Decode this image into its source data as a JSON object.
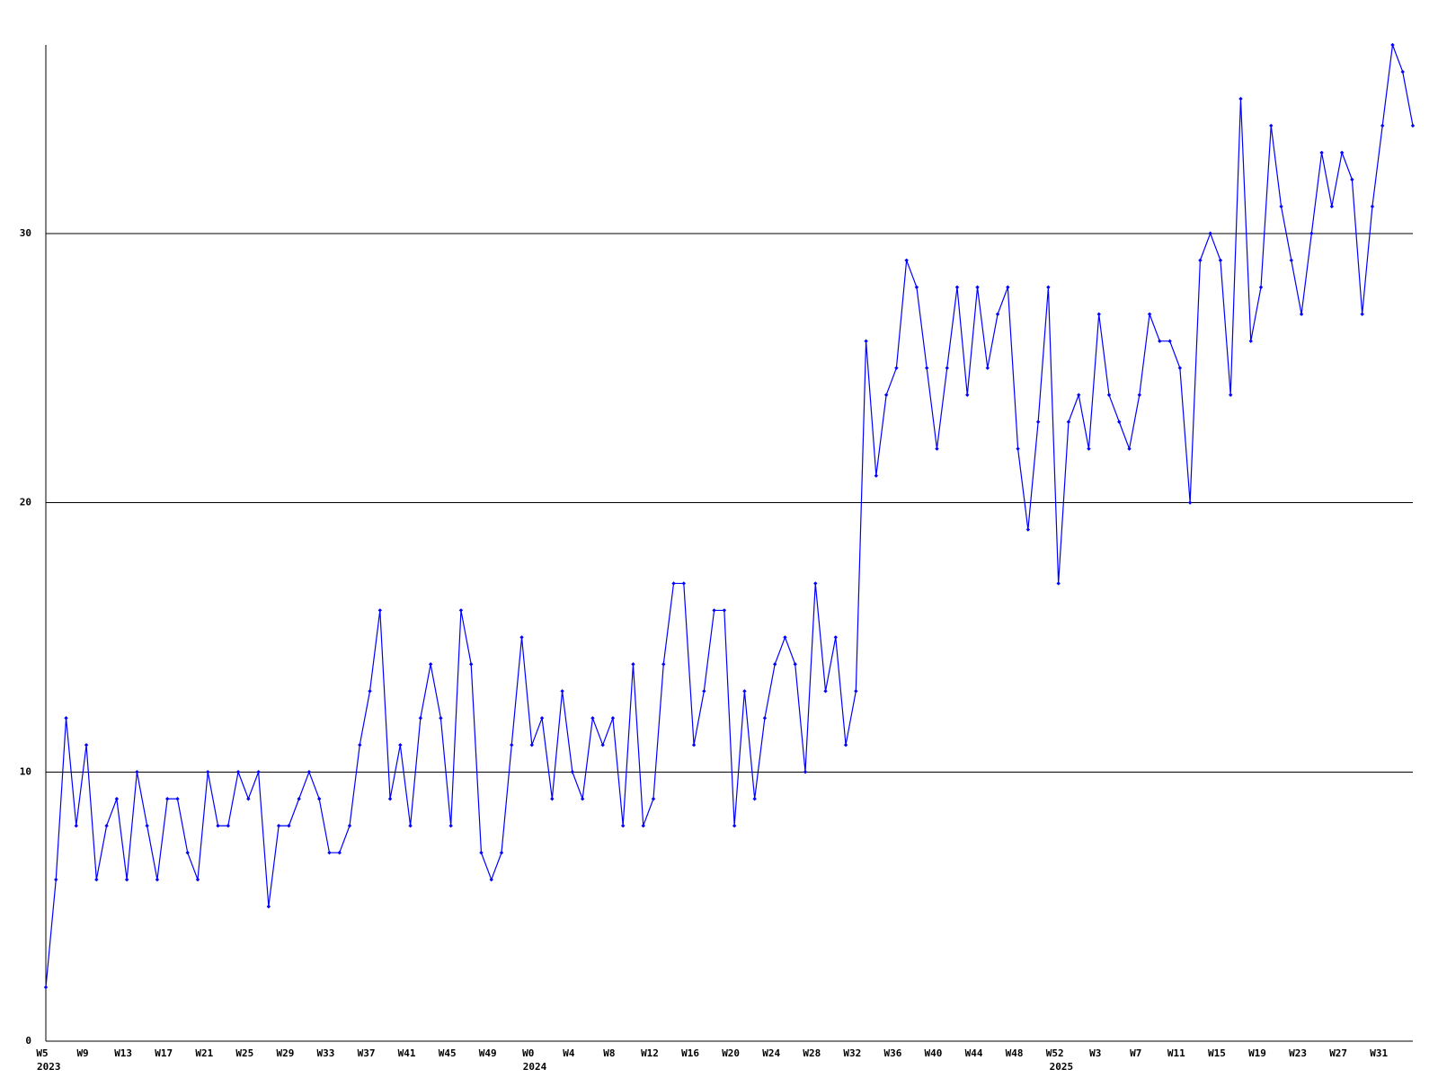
{
  "chart_data": {
    "type": "line",
    "categories": [
      "W5",
      null,
      null,
      null,
      "W9",
      null,
      null,
      null,
      "W13",
      null,
      null,
      null,
      "W17",
      null,
      null,
      null,
      "W21",
      null,
      null,
      null,
      "W25",
      null,
      null,
      null,
      "W29",
      null,
      null,
      null,
      "W33",
      null,
      null,
      null,
      "W37",
      null,
      null,
      null,
      "W41",
      null,
      null,
      null,
      "W45",
      null,
      null,
      null,
      "W49",
      null,
      null,
      null,
      "W0",
      null,
      null,
      null,
      "W4",
      null,
      null,
      null,
      "W8",
      null,
      null,
      null,
      "W12",
      null,
      null,
      null,
      "W16",
      null,
      null,
      null,
      "W20",
      null,
      null,
      null,
      "W24",
      null,
      null,
      null,
      "W28",
      null,
      null,
      null,
      "W32",
      null,
      null,
      null,
      "W36",
      null,
      null,
      null,
      "W40",
      null,
      null,
      null,
      "W44",
      null,
      null,
      null,
      "W48",
      null,
      null,
      null,
      "W52",
      null,
      null,
      null,
      "W3",
      null,
      null,
      null,
      "W7",
      null,
      null,
      null,
      "W11",
      null,
      null,
      null,
      "W15",
      null,
      null,
      null,
      "W19",
      null,
      null,
      null,
      "W23",
      null,
      null,
      null,
      "W27",
      null,
      null,
      null,
      "W31",
      null,
      null,
      null
    ],
    "category_years": [
      "2023",
      null,
      null,
      null,
      null,
      null,
      null,
      null,
      null,
      null,
      null,
      null,
      null,
      null,
      null,
      null,
      null,
      null,
      null,
      null,
      null,
      null,
      null,
      null,
      null,
      null,
      null,
      null,
      null,
      null,
      null,
      null,
      null,
      null,
      null,
      null,
      null,
      null,
      null,
      null,
      null,
      null,
      null,
      null,
      null,
      null,
      null,
      null,
      "2024",
      null,
      null,
      null,
      null,
      null,
      null,
      null,
      null,
      null,
      null,
      null,
      null,
      null,
      null,
      null,
      null,
      null,
      null,
      null,
      null,
      null,
      null,
      null,
      null,
      null,
      null,
      null,
      null,
      null,
      null,
      null,
      null,
      null,
      null,
      null,
      null,
      null,
      null,
      null,
      null,
      null,
      null,
      null,
      null,
      null,
      null,
      null,
      null,
      null,
      null,
      null,
      "2025",
      null,
      null,
      null,
      null,
      null,
      null,
      null,
      null,
      null,
      null,
      null,
      null,
      null,
      null,
      null,
      null,
      null,
      null,
      null,
      null,
      null,
      null,
      null,
      null,
      null,
      null,
      null,
      null,
      null,
      null,
      null,
      null,
      null,
      null,
      null
    ],
    "series": [
      {
        "color": "#0000ff",
        "values": [
          2,
          6,
          12,
          8,
          11,
          6,
          8,
          9,
          6,
          10,
          8,
          6,
          9,
          9,
          7,
          6,
          10,
          8,
          8,
          10,
          9,
          10,
          5,
          8,
          8,
          9,
          10,
          9,
          7,
          7,
          8,
          11,
          13,
          16,
          9,
          11,
          8,
          12,
          14,
          12,
          8,
          16,
          14,
          7,
          6,
          7,
          11,
          15,
          11,
          12,
          9,
          13,
          10,
          9,
          12,
          11,
          12,
          8,
          14,
          8,
          9,
          14,
          17,
          17,
          11,
          13,
          16,
          16,
          8,
          13,
          9,
          12,
          14,
          15,
          14,
          10,
          17,
          13,
          15,
          11,
          13,
          26,
          21,
          24,
          25,
          29,
          28,
          25,
          22,
          25,
          28,
          24,
          28,
          25,
          27,
          28,
          22,
          19,
          23,
          28,
          17,
          23,
          24,
          22,
          27,
          24,
          23,
          22,
          24,
          27,
          26,
          26,
          25,
          20,
          29,
          30,
          29,
          24,
          35,
          26,
          28,
          34,
          31,
          29,
          27,
          30,
          33,
          31,
          33,
          32,
          27,
          31,
          34,
          37,
          36,
          34
        ]
      }
    ],
    "ylim": [
      0,
      37
    ],
    "yticks": [
      0,
      10,
      20,
      30
    ],
    "grid": true
  }
}
